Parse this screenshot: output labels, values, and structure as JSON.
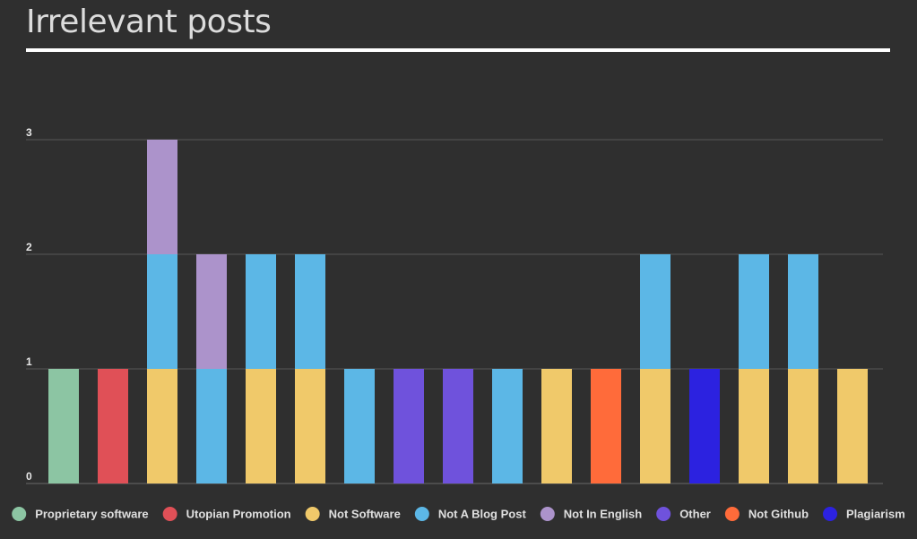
{
  "header": {
    "title": "Irrelevant posts"
  },
  "chart_data": {
    "type": "bar",
    "stacked": true,
    "ylim": [
      0,
      3
    ],
    "yticks": [
      0,
      1,
      2,
      3
    ],
    "grid": true,
    "legend_position": "bottom",
    "bar_count": 17,
    "series": [
      {
        "name": "Proprietary software",
        "color": "#8cc5a3",
        "values": [
          1,
          0,
          0,
          0,
          0,
          0,
          0,
          0,
          0,
          0,
          0,
          0,
          0,
          0,
          0,
          0,
          0
        ]
      },
      {
        "name": "Utopian Promotion",
        "color": "#e05057",
        "values": [
          0,
          1,
          0,
          0,
          0,
          0,
          0,
          0,
          0,
          0,
          0,
          0,
          0,
          0,
          0,
          0,
          0
        ]
      },
      {
        "name": "Not Software",
        "color": "#f0c96a",
        "values": [
          0,
          0,
          1,
          0,
          1,
          1,
          0,
          0,
          0,
          0,
          1,
          0,
          1,
          0,
          1,
          1,
          1
        ]
      },
      {
        "name": "Not A Blog Post",
        "color": "#5cb7e6",
        "values": [
          0,
          0,
          1,
          1,
          1,
          1,
          1,
          0,
          0,
          1,
          0,
          0,
          1,
          0,
          1,
          1,
          0
        ]
      },
      {
        "name": "Not In English",
        "color": "#ac93cb",
        "values": [
          0,
          0,
          1,
          1,
          0,
          0,
          0,
          0,
          0,
          0,
          0,
          0,
          0,
          0,
          0,
          0,
          0
        ]
      },
      {
        "name": "Other",
        "color": "#6f52dc",
        "values": [
          0,
          0,
          0,
          0,
          0,
          0,
          0,
          1,
          1,
          0,
          0,
          0,
          0,
          0,
          0,
          0,
          0
        ]
      },
      {
        "name": "Not Github",
        "color": "#ff6b3a",
        "values": [
          0,
          0,
          0,
          0,
          0,
          0,
          0,
          0,
          0,
          0,
          0,
          1,
          0,
          0,
          0,
          0,
          0
        ]
      },
      {
        "name": "Plagiarism",
        "color": "#2c22e0",
        "values": [
          0,
          0,
          0,
          0,
          0,
          0,
          0,
          0,
          0,
          0,
          0,
          0,
          0,
          1,
          0,
          0,
          0
        ]
      }
    ]
  }
}
